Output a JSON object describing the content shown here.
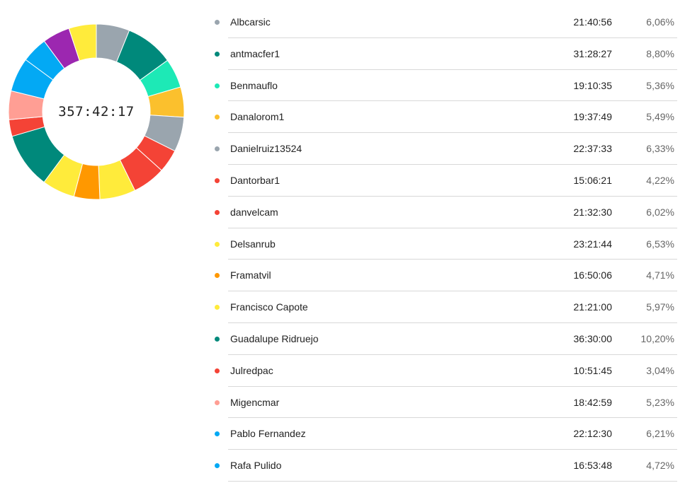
{
  "chart_data": {
    "type": "pie",
    "center_label": "357:42:17",
    "slices": [
      {
        "name": "Albcarsic",
        "time": "21:40:56",
        "pct_label": "6,06%",
        "value": 6.06,
        "color": "#9aa5ae"
      },
      {
        "name": "antmacfer1",
        "time": "31:28:27",
        "pct_label": "8,80%",
        "value": 8.8,
        "color": "#00897b"
      },
      {
        "name": "Benmauflo",
        "time": "19:10:35",
        "pct_label": "5,36%",
        "value": 5.36,
        "color": "#1de9b6"
      },
      {
        "name": "Danalorom1",
        "time": "19:37:49",
        "pct_label": "5,49%",
        "value": 5.49,
        "color": "#fbc02d"
      },
      {
        "name": "Danielruiz13524",
        "time": "22:37:33",
        "pct_label": "6,33%",
        "value": 6.33,
        "color": "#9aa5ae"
      },
      {
        "name": "Dantorbar1",
        "time": "15:06:21",
        "pct_label": "4,22%",
        "value": 4.22,
        "color": "#f44336"
      },
      {
        "name": "danvelcam",
        "time": "21:32:30",
        "pct_label": "6,02%",
        "value": 6.02,
        "color": "#f44336"
      },
      {
        "name": "Delsanrub",
        "time": "23:21:44",
        "pct_label": "6,53%",
        "value": 6.53,
        "color": "#ffeb3b"
      },
      {
        "name": "Framatvil",
        "time": "16:50:06",
        "pct_label": "4,71%",
        "value": 4.71,
        "color": "#ff9800"
      },
      {
        "name": "Francisco Capote",
        "time": "21:21:00",
        "pct_label": "5,97%",
        "value": 5.97,
        "color": "#ffeb3b"
      },
      {
        "name": "Guadalupe Ridruejo",
        "time": "36:30:00",
        "pct_label": "10,20%",
        "value": 10.2,
        "color": "#00897b"
      },
      {
        "name": "Julredpac",
        "time": "10:51:45",
        "pct_label": "3,04%",
        "value": 3.04,
        "color": "#f44336"
      },
      {
        "name": "Migencmar",
        "time": "18:42:59",
        "pct_label": "5,23%",
        "value": 5.23,
        "color": "#ff9e94"
      },
      {
        "name": "Pablo Fernandez",
        "time": "22:12:30",
        "pct_label": "6,21%",
        "value": 6.21,
        "color": "#03a9f4"
      },
      {
        "name": "Rafa Pulido",
        "time": "16:53:48",
        "pct_label": "4,72%",
        "value": 4.72,
        "color": "#03a9f4"
      }
    ],
    "additional_chart_segments": [
      {
        "value": 5.0,
        "color": "#9c27b0"
      },
      {
        "value": 5.0,
        "color": "#ffeb3b"
      }
    ]
  }
}
